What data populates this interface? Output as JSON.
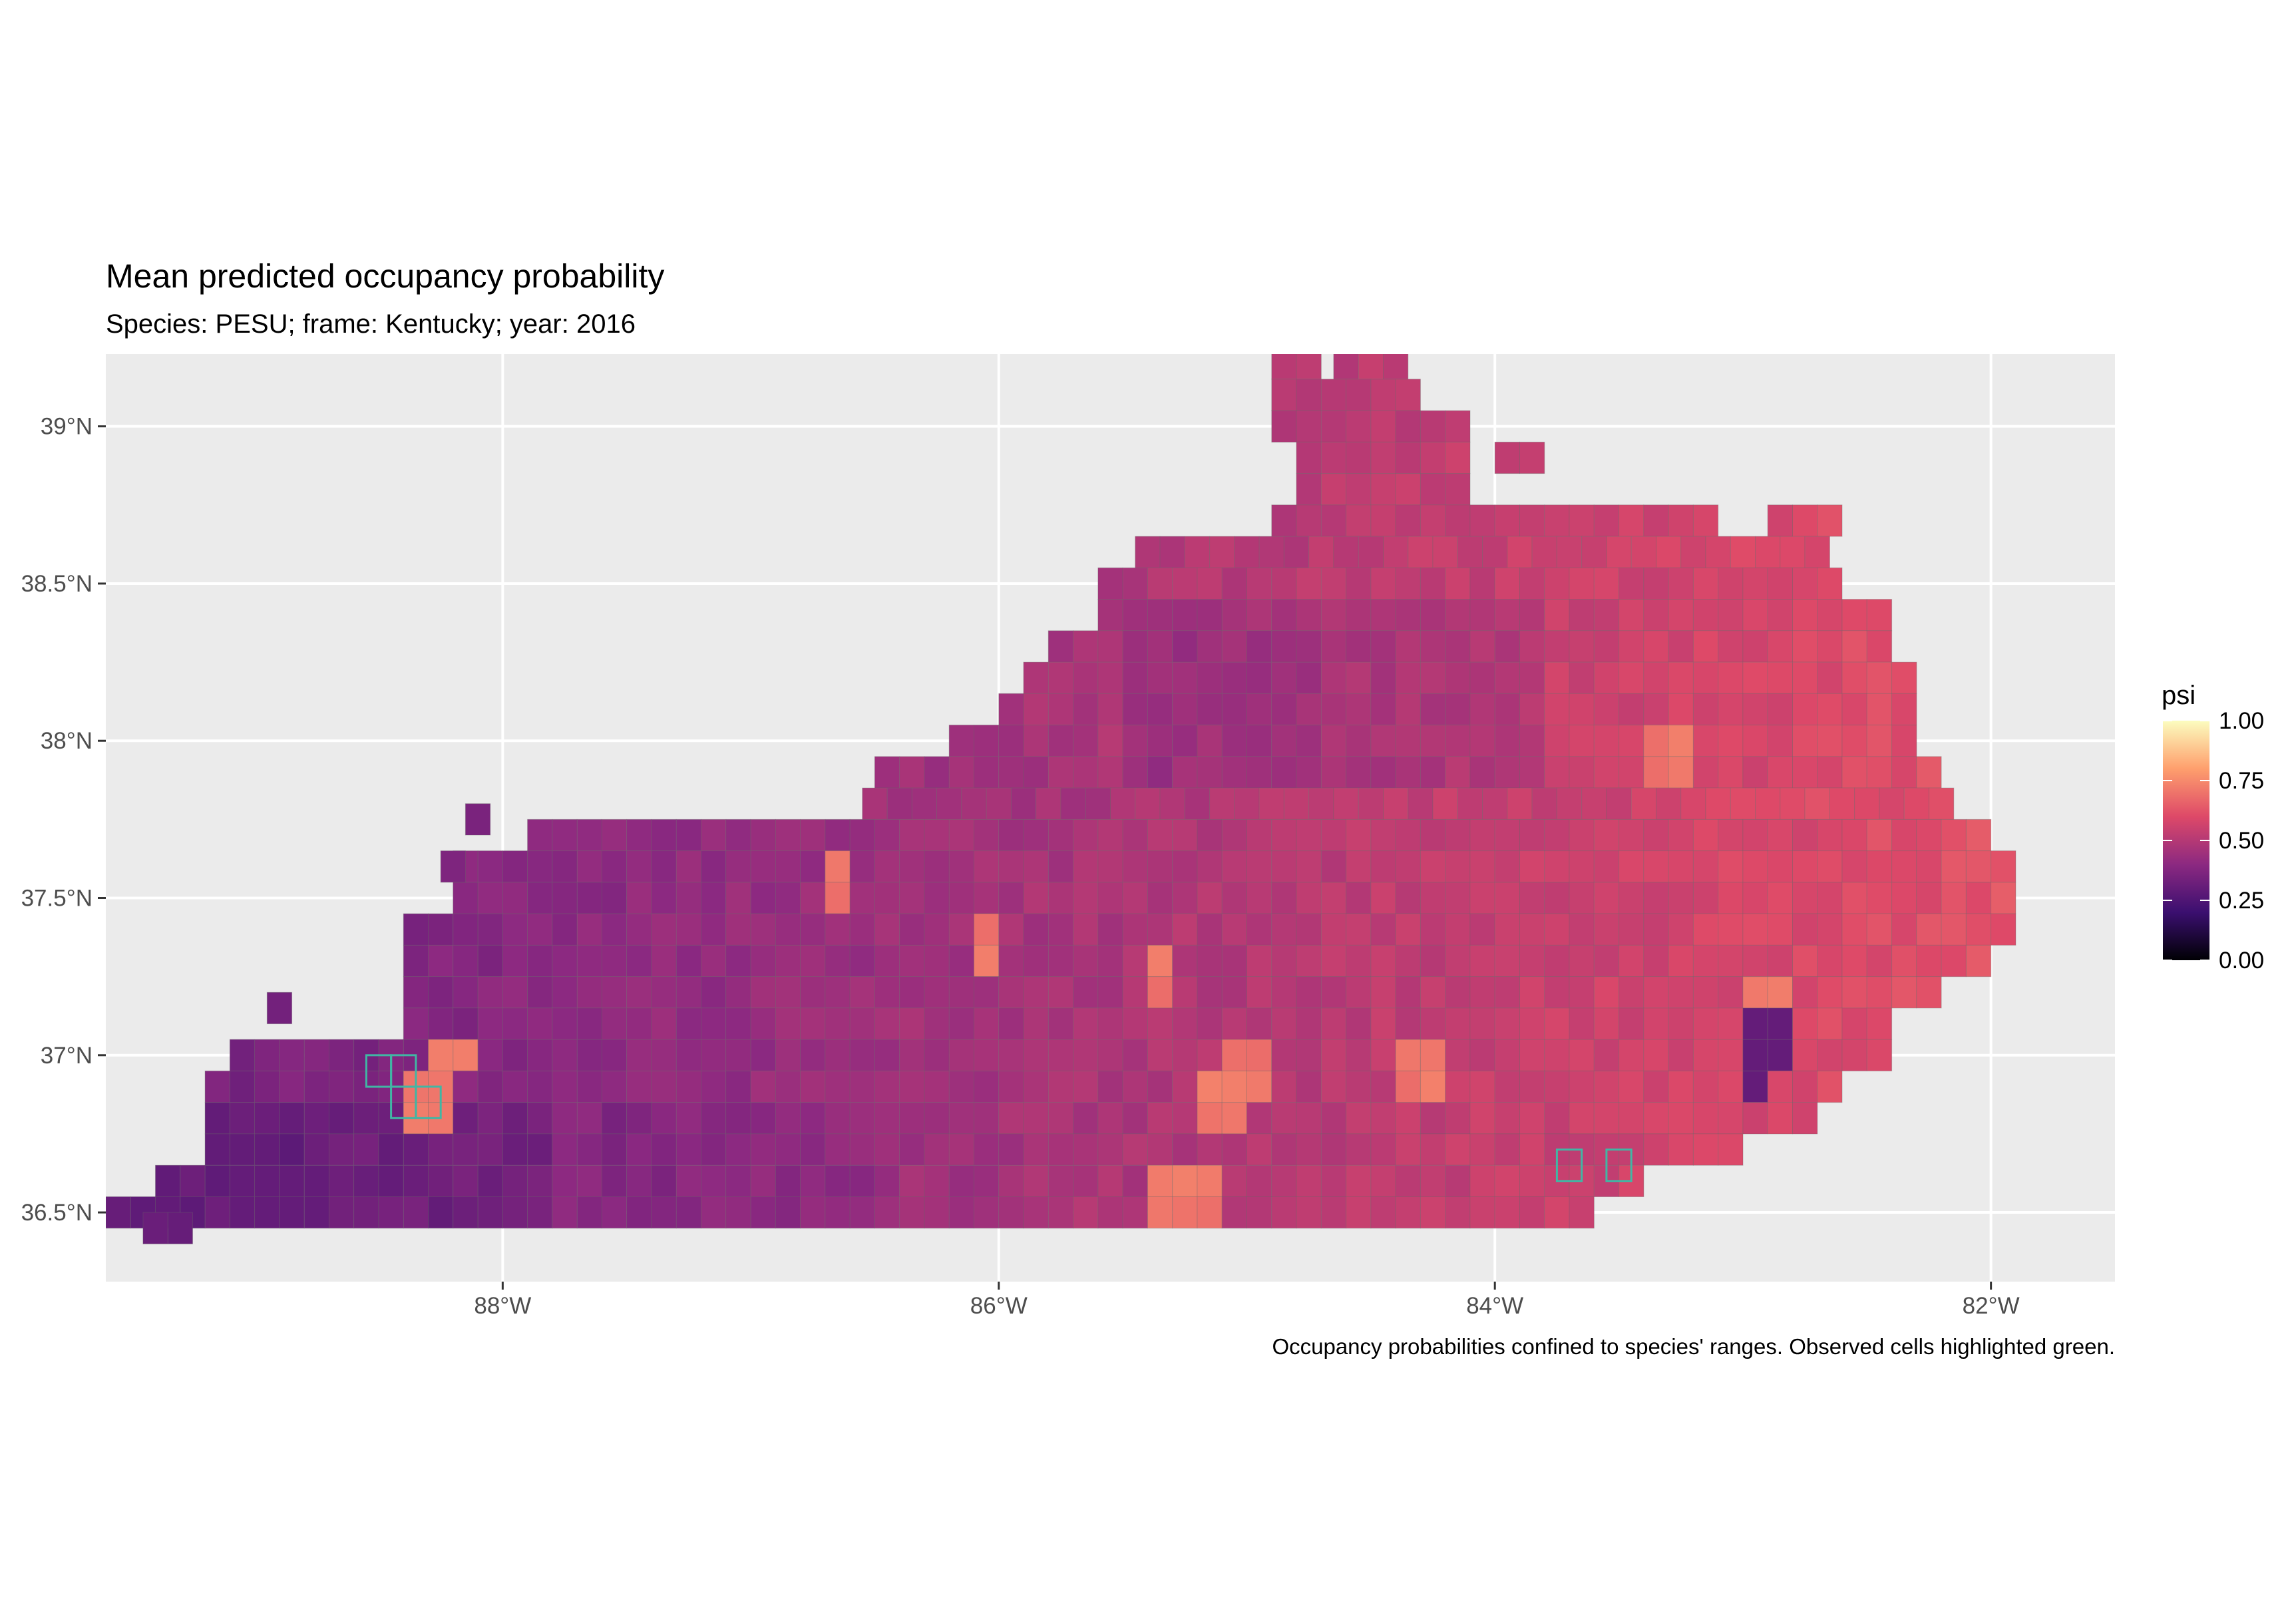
{
  "plot": {
    "title": "Mean predicted occupancy probability",
    "subtitle": "Species: PESU; frame: Kentucky; year: 2016",
    "caption": "Occupancy probabilities confined to species' ranges. Observed cells highlighted green.",
    "panel_background": "#ebebeb",
    "grid_color": "#ffffff"
  },
  "axes": {
    "x": {
      "range": [
        -89.6,
        -81.5
      ],
      "ticks": [
        {
          "value": -88,
          "label": "88°W"
        },
        {
          "value": -86,
          "label": "86°W"
        },
        {
          "value": -84,
          "label": "84°W"
        },
        {
          "value": -82,
          "label": "82°W"
        }
      ]
    },
    "y": {
      "range": [
        36.28,
        39.23
      ],
      "ticks": [
        {
          "value": 36.5,
          "label": "36.5°N"
        },
        {
          "value": 37.0,
          "label": "37°N"
        },
        {
          "value": 37.5,
          "label": "37.5°N"
        },
        {
          "value": 38.0,
          "label": "38°N"
        },
        {
          "value": 38.5,
          "label": "38.5°N"
        },
        {
          "value": 39.0,
          "label": "39°N"
        }
      ]
    }
  },
  "legend": {
    "title": "psi",
    "position": "right",
    "palette": "magma",
    "stops": [
      "#000004",
      "#3b0f70",
      "#8c2981",
      "#de4968",
      "#fe9f6d",
      "#fcfdbf"
    ],
    "breaks": [
      {
        "value": 1.0,
        "label": "1.00"
      },
      {
        "value": 0.75,
        "label": "0.75"
      },
      {
        "value": 0.5,
        "label": "0.50"
      },
      {
        "value": 0.25,
        "label": "0.25"
      },
      {
        "value": 0.0,
        "label": "0.00"
      }
    ]
  },
  "map_data": {
    "type": "grid-raster",
    "variable": "psi",
    "region": "Kentucky",
    "cell_lon_step": 0.1,
    "cell_lat_step": 0.1,
    "cell_border": "#666666",
    "observed_border": "#41b6a4",
    "shape_runs": [
      {
        "lat": 39.2,
        "runs": [
          [
            -84.85,
            -84.75
          ],
          [
            -84.6,
            -84.4
          ]
        ]
      },
      {
        "lat": 39.1,
        "runs": [
          [
            -84.85,
            -84.3
          ]
        ]
      },
      {
        "lat": 39.0,
        "runs": [
          [
            -84.85,
            -84.15
          ]
        ]
      },
      {
        "lat": 38.9,
        "runs": [
          [
            -84.75,
            -84.15
          ],
          [
            -83.95,
            -83.85
          ]
        ]
      },
      {
        "lat": 38.8,
        "runs": [
          [
            -84.75,
            -84.15
          ]
        ]
      },
      {
        "lat": 38.7,
        "runs": [
          [
            -84.85,
            -83.1
          ],
          [
            -82.85,
            -82.65
          ]
        ]
      },
      {
        "lat": 38.6,
        "runs": [
          [
            -85.4,
            -82.65
          ]
        ]
      },
      {
        "lat": 38.5,
        "runs": [
          [
            -85.55,
            -82.65
          ]
        ]
      },
      {
        "lat": 38.4,
        "runs": [
          [
            -85.55,
            -82.45
          ]
        ]
      },
      {
        "lat": 38.3,
        "runs": [
          [
            -85.75,
            -82.45
          ]
        ]
      },
      {
        "lat": 38.2,
        "runs": [
          [
            -85.85,
            -82.35
          ]
        ]
      },
      {
        "lat": 38.1,
        "runs": [
          [
            -85.95,
            -82.35
          ]
        ]
      },
      {
        "lat": 38.0,
        "runs": [
          [
            -86.15,
            -82.35
          ]
        ]
      },
      {
        "lat": 37.9,
        "runs": [
          [
            -86.45,
            -82.25
          ]
        ]
      },
      {
        "lat": 37.8,
        "runs": [
          [
            -86.5,
            -82.15
          ]
        ]
      },
      {
        "lat": 37.7,
        "runs": [
          [
            -87.85,
            -82.05
          ]
        ]
      },
      {
        "lat": 37.6,
        "runs": [
          [
            -88.15,
            -81.95
          ]
        ]
      },
      {
        "lat": 37.5,
        "runs": [
          [
            -88.15,
            -81.95
          ]
        ]
      },
      {
        "lat": 37.4,
        "runs": [
          [
            -88.35,
            -81.95
          ]
        ]
      },
      {
        "lat": 37.3,
        "runs": [
          [
            -88.35,
            -82.05
          ]
        ]
      },
      {
        "lat": 37.2,
        "runs": [
          [
            -88.35,
            -82.25
          ]
        ]
      },
      {
        "lat": 37.1,
        "runs": [
          [
            -88.35,
            -82.45
          ]
        ]
      },
      {
        "lat": 37.0,
        "runs": [
          [
            -89.05,
            -82.45
          ]
        ]
      },
      {
        "lat": 36.9,
        "runs": [
          [
            -89.15,
            -82.65
          ]
        ]
      },
      {
        "lat": 36.8,
        "runs": [
          [
            -89.15,
            -82.75
          ]
        ]
      },
      {
        "lat": 36.7,
        "runs": [
          [
            -89.15,
            -83.05
          ]
        ]
      },
      {
        "lat": 36.6,
        "runs": [
          [
            -89.35,
            -83.4
          ]
        ]
      },
      {
        "lat": 36.5,
        "runs": [
          [
            -89.55,
            -83.6
          ]
        ]
      }
    ],
    "extra_cells": [
      [
        -88.9,
        37.15
      ],
      [
        -88.1,
        37.75
      ],
      [
        -88.2,
        37.6
      ],
      [
        -89.3,
        36.45
      ],
      [
        -89.4,
        36.45
      ]
    ],
    "observed_cells": [
      [
        -88.5,
        36.95
      ],
      [
        -88.4,
        36.85
      ],
      [
        -88.3,
        36.85
      ],
      [
        -88.4,
        36.95
      ],
      [
        -83.7,
        36.65
      ],
      [
        -83.5,
        36.65
      ]
    ],
    "hot_cells": [
      [
        -88.2,
        37.0
      ],
      [
        -88.3,
        36.85
      ],
      [
        -84.3,
        36.95
      ],
      [
        -85.0,
        36.95
      ],
      [
        -85.1,
        36.85
      ],
      [
        -85.3,
        36.55
      ],
      [
        -85.2,
        36.55
      ],
      [
        -85.35,
        37.25
      ],
      [
        -85.0,
        36.95
      ],
      [
        -83.3,
        37.95
      ],
      [
        -86.05,
        37.35
      ],
      [
        -86.65,
        37.55
      ],
      [
        -82.9,
        37.15
      ]
    ],
    "cold_cells": [
      [
        -82.95,
        36.95
      ],
      [
        -82.9,
        37.05
      ],
      [
        -89.0,
        36.55
      ],
      [
        -88.8,
        36.55
      ]
    ]
  }
}
